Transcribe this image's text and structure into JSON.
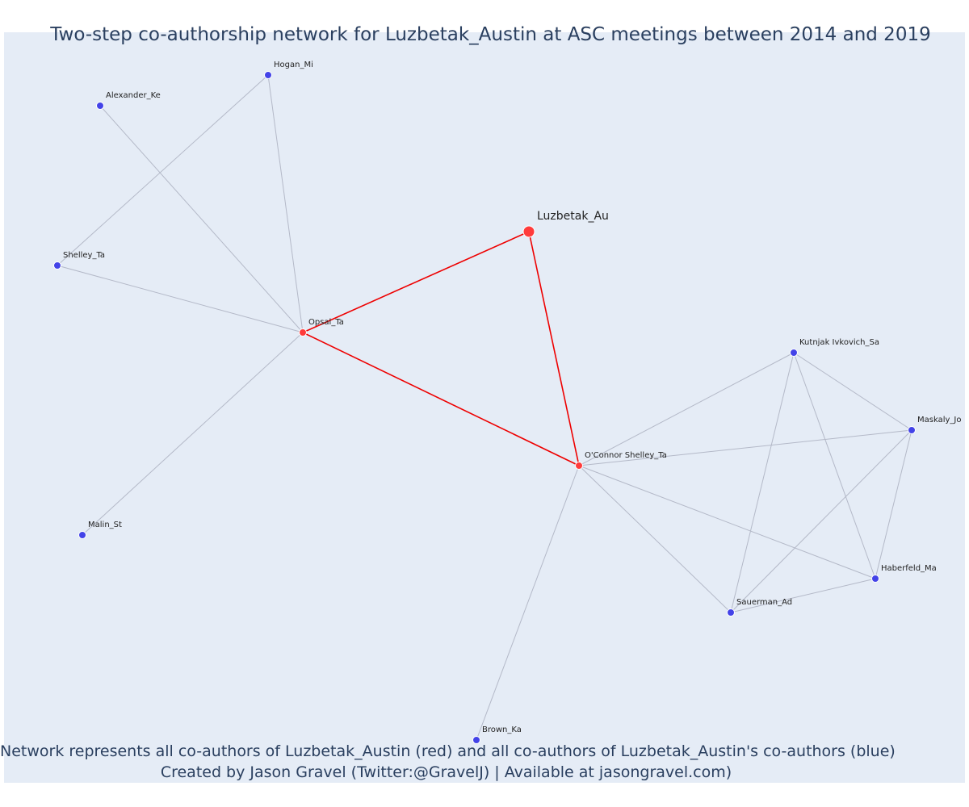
{
  "title": "Two-step co-authorship network for Luzbetak_Austin at ASC meetings between 2014 and 2019",
  "footnote": {
    "line1": "Network represents all co-authors of Luzbetak_Austin (red) and all co-authors of Luzbetak_Austin's co-authors (blue)",
    "line2": "Created by Jason Gravel (Twitter:@GravelJ) | Available at jasongravel.com)"
  },
  "colors": {
    "background": "#e5ecf6",
    "red_node": "#ff3b3b",
    "blue_node": "#4343e8",
    "red_edge": "#ee0000",
    "gray_edge": "#b4b9c8",
    "text": "#2a3f5f"
  },
  "network": {
    "focal_node": "Luzbetak_Au",
    "nodes": [
      {
        "id": "Luzbetak_Au",
        "group": "focal"
      },
      {
        "id": "Opsal_Ta",
        "group": "red"
      },
      {
        "id": "O'Connor Shelley_Ta",
        "group": "red"
      },
      {
        "id": "Hogan_Mi",
        "group": "blue"
      },
      {
        "id": "Alexander_Ke",
        "group": "blue"
      },
      {
        "id": "Shelley_Ta",
        "group": "blue"
      },
      {
        "id": "Malin_St",
        "group": "blue"
      },
      {
        "id": "Kutnjak Ivkovich_Sa",
        "group": "blue"
      },
      {
        "id": "Maskaly_Jo",
        "group": "blue"
      },
      {
        "id": "Haberfeld_Ma",
        "group": "blue"
      },
      {
        "id": "Sauerman_Ad",
        "group": "blue"
      },
      {
        "id": "Brown_Ka",
        "group": "blue"
      }
    ],
    "edges": [
      {
        "source": "Luzbetak_Au",
        "target": "Opsal_Ta",
        "type": "red"
      },
      {
        "source": "Luzbetak_Au",
        "target": "O'Connor Shelley_Ta",
        "type": "red"
      },
      {
        "source": "Opsal_Ta",
        "target": "O'Connor Shelley_Ta",
        "type": "red"
      },
      {
        "source": "Opsal_Ta",
        "target": "Hogan_Mi",
        "type": "gray"
      },
      {
        "source": "Opsal_Ta",
        "target": "Alexander_Ke",
        "type": "gray"
      },
      {
        "source": "Opsal_Ta",
        "target": "Shelley_Ta",
        "type": "gray"
      },
      {
        "source": "Opsal_Ta",
        "target": "Malin_St",
        "type": "gray"
      },
      {
        "source": "Hogan_Mi",
        "target": "Shelley_Ta",
        "type": "gray"
      },
      {
        "source": "O'Connor Shelley_Ta",
        "target": "Kutnjak Ivkovich_Sa",
        "type": "gray"
      },
      {
        "source": "O'Connor Shelley_Ta",
        "target": "Maskaly_Jo",
        "type": "gray"
      },
      {
        "source": "O'Connor Shelley_Ta",
        "target": "Haberfeld_Ma",
        "type": "gray"
      },
      {
        "source": "O'Connor Shelley_Ta",
        "target": "Sauerman_Ad",
        "type": "gray"
      },
      {
        "source": "O'Connor Shelley_Ta",
        "target": "Brown_Ka",
        "type": "gray"
      },
      {
        "source": "Kutnjak Ivkovich_Sa",
        "target": "Maskaly_Jo",
        "type": "gray"
      },
      {
        "source": "Kutnjak Ivkovich_Sa",
        "target": "Haberfeld_Ma",
        "type": "gray"
      },
      {
        "source": "Kutnjak Ivkovich_Sa",
        "target": "Sauerman_Ad",
        "type": "gray"
      },
      {
        "source": "Maskaly_Jo",
        "target": "Haberfeld_Ma",
        "type": "gray"
      },
      {
        "source": "Maskaly_Jo",
        "target": "Sauerman_Ad",
        "type": "gray"
      },
      {
        "source": "Haberfeld_Ma",
        "target": "Sauerman_Ad",
        "type": "gray"
      }
    ]
  }
}
